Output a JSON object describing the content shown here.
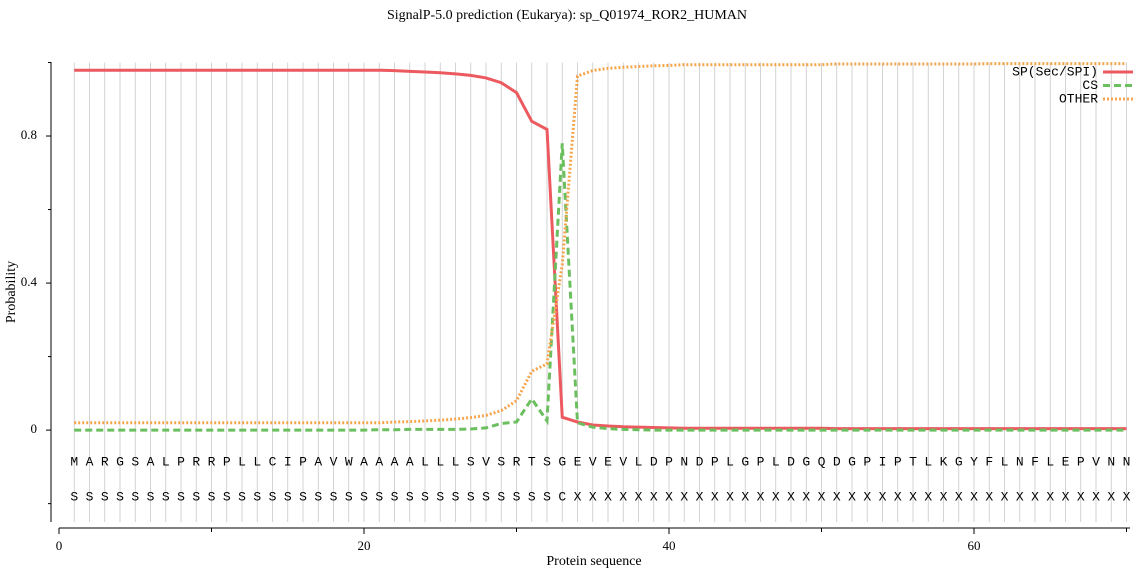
{
  "chart_data": {
    "type": "line",
    "title": "SignalP-5.0 prediction (Eukarya):  sp_Q01974_ROR2_HUMAN",
    "xlabel": "Protein sequence",
    "ylabel": "Probability",
    "x": [
      1,
      2,
      3,
      4,
      5,
      6,
      7,
      8,
      9,
      10,
      11,
      12,
      13,
      14,
      15,
      16,
      17,
      18,
      19,
      20,
      21,
      22,
      23,
      24,
      25,
      26,
      27,
      28,
      29,
      30,
      31,
      32,
      33,
      34,
      35,
      36,
      37,
      38,
      39,
      40,
      41,
      42,
      43,
      44,
      45,
      46,
      47,
      48,
      49,
      50,
      51,
      52,
      53,
      54,
      55,
      56,
      57,
      58,
      59,
      60,
      61,
      62,
      63,
      64,
      65,
      66,
      67,
      68,
      69,
      70
    ],
    "series": [
      {
        "name": "SP(Sec/SPI)",
        "color": "#ec5a60",
        "dash": "solid",
        "values": [
          0.979,
          0.979,
          0.979,
          0.979,
          0.979,
          0.979,
          0.979,
          0.979,
          0.979,
          0.979,
          0.979,
          0.979,
          0.979,
          0.979,
          0.979,
          0.979,
          0.979,
          0.979,
          0.979,
          0.979,
          0.979,
          0.978,
          0.976,
          0.974,
          0.972,
          0.969,
          0.965,
          0.958,
          0.945,
          0.918,
          0.84,
          0.818,
          0.035,
          0.022,
          0.014,
          0.011,
          0.009,
          0.008,
          0.007,
          0.006,
          0.005,
          0.005,
          0.005,
          0.005,
          0.005,
          0.005,
          0.005,
          0.005,
          0.005,
          0.005,
          0.004,
          0.004,
          0.004,
          0.004,
          0.004,
          0.004,
          0.004,
          0.004,
          0.004,
          0.004,
          0.004,
          0.004,
          0.004,
          0.004,
          0.004,
          0.004,
          0.004,
          0.004,
          0.004,
          0.004
        ]
      },
      {
        "name": "CS",
        "color": "#6cbf5f",
        "dash": "dashed",
        "values": [
          0,
          0,
          0,
          0,
          0,
          0,
          0,
          0,
          0,
          0,
          0,
          0,
          0,
          0,
          0,
          0,
          0,
          0,
          0,
          0,
          0.001,
          0.001,
          0.002,
          0.002,
          0.002,
          0.002,
          0.003,
          0.006,
          0.018,
          0.022,
          0.085,
          0.025,
          0.78,
          0.02,
          0.008,
          0.004,
          0.002,
          0.001,
          0,
          0,
          0,
          0,
          0,
          0,
          0,
          0,
          0,
          0,
          0,
          0,
          0,
          0,
          0,
          0,
          0,
          0,
          0,
          0,
          0,
          0,
          0,
          0,
          0,
          0,
          0,
          0,
          0,
          0,
          0,
          0
        ]
      },
      {
        "name": "OTHER",
        "color": "#f5a54c",
        "dash": "dotted",
        "values": [
          0.02,
          0.02,
          0.02,
          0.02,
          0.02,
          0.02,
          0.02,
          0.02,
          0.02,
          0.02,
          0.02,
          0.02,
          0.02,
          0.02,
          0.02,
          0.02,
          0.02,
          0.02,
          0.02,
          0.02,
          0.02,
          0.022,
          0.023,
          0.025,
          0.027,
          0.03,
          0.034,
          0.04,
          0.053,
          0.08,
          0.16,
          0.18,
          0.45,
          0.963,
          0.978,
          0.984,
          0.987,
          0.989,
          0.991,
          0.992,
          0.994,
          0.994,
          0.994,
          0.994,
          0.994,
          0.994,
          0.994,
          0.994,
          0.994,
          0.994,
          0.996,
          0.996,
          0.996,
          0.996,
          0.996,
          0.996,
          0.996,
          0.996,
          0.996,
          0.996,
          0.997,
          0.997,
          0.997,
          0.997,
          0.997,
          0.997,
          0.997,
          0.997,
          0.997,
          0.997
        ]
      }
    ],
    "sequence": [
      "M",
      "A",
      "R",
      "G",
      "S",
      "A",
      "L",
      "P",
      "R",
      "R",
      "P",
      "L",
      "L",
      "C",
      "I",
      "P",
      "A",
      "V",
      "W",
      "A",
      "A",
      "A",
      "A",
      "L",
      "L",
      "L",
      "S",
      "V",
      "S",
      "R",
      "T",
      "S",
      "G",
      "E",
      "V",
      "E",
      "V",
      "L",
      "D",
      "P",
      "N",
      "D",
      "P",
      "L",
      "G",
      "P",
      "L",
      "D",
      "G",
      "Q",
      "D",
      "G",
      "P",
      "I",
      "P",
      "T",
      "L",
      "K",
      "G",
      "Y",
      "F",
      "L",
      "N",
      "F",
      "L",
      "E",
      "P",
      "V",
      "N",
      "N"
    ],
    "labels": [
      "S",
      "S",
      "S",
      "S",
      "S",
      "S",
      "S",
      "S",
      "S",
      "S",
      "S",
      "S",
      "S",
      "S",
      "S",
      "S",
      "S",
      "S",
      "S",
      "S",
      "S",
      "S",
      "S",
      "S",
      "S",
      "S",
      "S",
      "S",
      "S",
      "S",
      "S",
      "S",
      "C",
      "X",
      "X",
      "X",
      "X",
      "X",
      "X",
      "X",
      "X",
      "X",
      "X",
      "X",
      "X",
      "X",
      "X",
      "X",
      "X",
      "X",
      "X",
      "X",
      "X",
      "X",
      "X",
      "X",
      "X",
      "X",
      "X",
      "X",
      "X",
      "X",
      "X",
      "X",
      "X",
      "X",
      "X",
      "X",
      "X",
      "X"
    ],
    "xlim": [
      0,
      70
    ],
    "xticks": [
      0,
      20,
      40,
      60
    ],
    "xminor": [
      10,
      30,
      50,
      70
    ],
    "ylim": [
      -0.25,
      1.0
    ],
    "yticks": [
      0,
      0.4,
      0.8
    ],
    "yminor": [
      -0.2,
      0.2,
      0.6,
      1.0
    ],
    "grid": true,
    "legend": "upper right"
  }
}
